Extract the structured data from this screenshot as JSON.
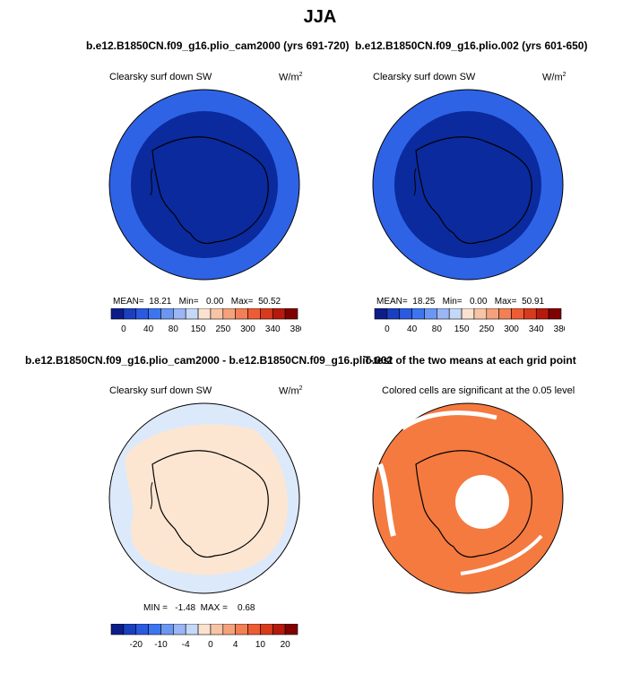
{
  "page": {
    "title": "JJA"
  },
  "panels": [
    {
      "title": "b.e12.B1850CN.f09_g16.plio_cam2000 (yrs 691-720)",
      "variable": "Clearsky surf down SW",
      "units_base": "W/m",
      "units_exp": "2",
      "stats": {
        "mean_label": "MEAN=",
        "mean": "18.21",
        "min_label": "Min=",
        "min": "0.00",
        "max_label": "Max=",
        "max": "50.52"
      }
    },
    {
      "title": "b.e12.B1850CN.f09_g16.plio.002 (yrs 601-650)",
      "variable": "Clearsky surf down SW",
      "units_base": "W/m",
      "units_exp": "2",
      "stats": {
        "mean_label": "MEAN=",
        "mean": "18.25",
        "min_label": "Min=",
        "min": "0.00",
        "max_label": "Max=",
        "max": "50.91"
      }
    },
    {
      "title": "b.e12.B1850CN.f09_g16.plio_cam2000 - b.e12.B1850CN.f09_g16.plio.002",
      "variable": "Clearsky surf down SW",
      "units_base": "W/m",
      "units_exp": "2",
      "minmax": "MIN =   -1.48  MAX =    0.68"
    },
    {
      "title": "T-test of the two means at each grid point",
      "note": "Colored cells are significant at the 0.05 level"
    }
  ],
  "colorbars": {
    "abs": {
      "colors": [
        "#0c1d8a",
        "#1a3fc0",
        "#2a5ae0",
        "#3d75f0",
        "#6b97f2",
        "#9ab6f4",
        "#c5d8f7",
        "#fbe2cf",
        "#f8c4a6",
        "#f5a27c",
        "#f37f55",
        "#ee5c34",
        "#d83a1c",
        "#b51a0c",
        "#800000"
      ],
      "labels": [
        "0",
        "40",
        "80",
        "150",
        "250",
        "300",
        "340",
        "380"
      ]
    },
    "diff": {
      "colors": [
        "#0c1d8a",
        "#1a3fc0",
        "#2a5ae0",
        "#3d75f0",
        "#6b97f2",
        "#9ab6f4",
        "#c5d8f7",
        "#fbe2cf",
        "#f8c4a6",
        "#f5a27c",
        "#f37f55",
        "#ee5c34",
        "#d83a1c",
        "#b51a0c",
        "#800000"
      ],
      "labels": [
        "-20",
        "-10",
        "-4",
        "0",
        "4",
        "10",
        "20"
      ]
    }
  },
  "colors": {
    "abs_outer": "#2f63e6",
    "abs_inner": "#0a2a9e",
    "diff_bg": "#dbe9fb",
    "diff_pos": "#fce6d2",
    "sig": "#f47a40"
  }
}
